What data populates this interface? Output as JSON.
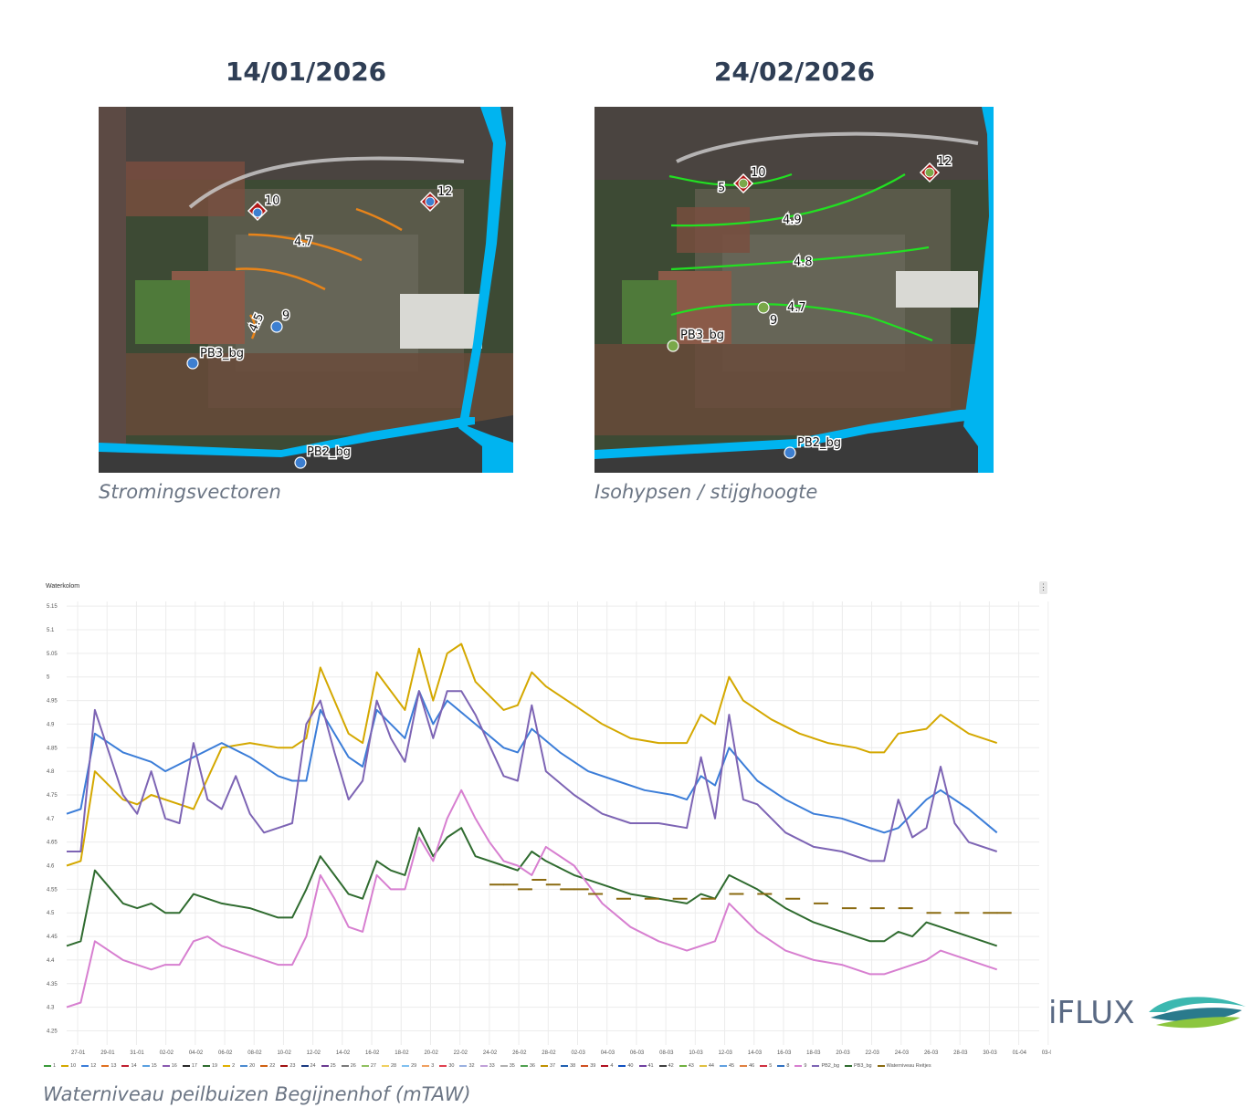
{
  "left_panel": {
    "date": "14/01/2026",
    "caption": "Stromingsvectoren",
    "labels": {
      "p10": "10",
      "p12": "12",
      "p9": "9",
      "pb3": "PB3_bg",
      "pb2": "PB2_bg",
      "c47": "4.7",
      "c45": "4.5"
    }
  },
  "right_panel": {
    "date": "24/02/2026",
    "caption": "Isohypsen / stijghoogte",
    "labels": {
      "p10": "10",
      "p12": "12",
      "p9": "9",
      "pb3": "PB3_bg",
      "pb2": "PB2_bg",
      "c5": "5",
      "c49": "4.9",
      "c48": "4.8",
      "c47": "4.7"
    }
  },
  "chart": {
    "title": "Waterkolom",
    "menu": "⋮",
    "caption": "Waterniveau peilbuizen Begijnenhof (mTAW)",
    "y_ticks": [
      "5.15",
      "5.1",
      "5.05",
      "5",
      "4.95",
      "4.9",
      "4.85",
      "4.8",
      "4.75",
      "4.7",
      "4.65",
      "4.6",
      "4.55",
      "4.5",
      "4.45",
      "4.4",
      "4.35",
      "4.3",
      "4.25"
    ],
    "x_ticks": [
      "27-01",
      "29-01",
      "31-01",
      "02-02",
      "04-02",
      "06-02",
      "08-02",
      "10-02",
      "12-02",
      "14-02",
      "16-02",
      "18-02",
      "20-02",
      "22-02",
      "24-02",
      "26-02",
      "28-02",
      "02-03",
      "04-03",
      "06-03",
      "08-03",
      "10-03",
      "12-03",
      "14-03",
      "16-03",
      "18-03",
      "20-03",
      "22-03",
      "24-03",
      "26-03",
      "28-03",
      "30-03",
      "01-04",
      "03-04"
    ],
    "legend": [
      {
        "name": "1",
        "color": "#3a9a3a"
      },
      {
        "name": "10",
        "color": "#d4a800"
      },
      {
        "name": "12",
        "color": "#3b7dd8"
      },
      {
        "name": "13",
        "color": "#e07020"
      },
      {
        "name": "14",
        "color": "#c02030"
      },
      {
        "name": "15",
        "color": "#5aa0e0"
      },
      {
        "name": "16",
        "color": "#8a5ab0"
      },
      {
        "name": "17",
        "color": "#2a2a2a"
      },
      {
        "name": "19",
        "color": "#2f6b2f"
      },
      {
        "name": "2",
        "color": "#e0b000"
      },
      {
        "name": "20",
        "color": "#4a8ad0"
      },
      {
        "name": "22",
        "color": "#d06010"
      },
      {
        "name": "23",
        "color": "#a01010"
      },
      {
        "name": "24",
        "color": "#1a3a80"
      },
      {
        "name": "25",
        "color": "#6a3a90"
      },
      {
        "name": "26",
        "color": "#7a7a7a"
      },
      {
        "name": "27",
        "color": "#90c060"
      },
      {
        "name": "28",
        "color": "#f0d060"
      },
      {
        "name": "29",
        "color": "#80c0f0"
      },
      {
        "name": "3",
        "color": "#f0a060"
      },
      {
        "name": "30",
        "color": "#e04050"
      },
      {
        "name": "32",
        "color": "#9ab0e0"
      },
      {
        "name": "33",
        "color": "#c0a0d8"
      },
      {
        "name": "35",
        "color": "#b0b0b0"
      },
      {
        "name": "36",
        "color": "#50a050"
      },
      {
        "name": "37",
        "color": "#c09000"
      },
      {
        "name": "38",
        "color": "#2060b0"
      },
      {
        "name": "39",
        "color": "#d05020"
      },
      {
        "name": "4",
        "color": "#b01020"
      },
      {
        "name": "40",
        "color": "#1050c0"
      },
      {
        "name": "41",
        "color": "#7040a0"
      },
      {
        "name": "42",
        "color": "#404040"
      },
      {
        "name": "43",
        "color": "#70b040"
      },
      {
        "name": "44",
        "color": "#e0c040"
      },
      {
        "name": "45",
        "color": "#60a0e0"
      },
      {
        "name": "46",
        "color": "#e08040"
      },
      {
        "name": "5",
        "color": "#d03040"
      },
      {
        "name": "8",
        "color": "#3070c0"
      },
      {
        "name": "9",
        "color": "#d77fd0"
      },
      {
        "name": "PB2_bg",
        "color": "#7d64b4"
      },
      {
        "name": "PB3_bg",
        "color": "#2f6b2f"
      },
      {
        "name": "Waterniveau Reitjes",
        "color": "#8a6a10"
      }
    ]
  },
  "chart_data": {
    "type": "line",
    "title": "Waterkolom",
    "x_unit": "date (dd-mm, 2026)",
    "ylim": [
      4.22,
      5.16
    ],
    "grid": true,
    "legend_position": "bottom",
    "series": [
      {
        "name": "10",
        "color": "#d4a800",
        "x": [
          "26-01",
          "27-01",
          "28-01",
          "30-01",
          "31-01",
          "01-02",
          "03-02",
          "04-02",
          "06-02",
          "08-02",
          "10-02",
          "11-02",
          "12-02",
          "13-02",
          "15-02",
          "16-02",
          "17-02",
          "19-02",
          "20-02",
          "21-02",
          "22-02",
          "23-02",
          "24-02",
          "26-02",
          "27-02",
          "28-02",
          "01-03",
          "03-03",
          "05-03",
          "07-03",
          "09-03",
          "11-03",
          "12-03",
          "13-03",
          "14-03",
          "15-03",
          "17-03",
          "19-03",
          "21-03",
          "23-03",
          "24-03",
          "25-03",
          "26-03",
          "28-03",
          "29-03",
          "31-03",
          "02-04"
        ],
        "y": [
          4.6,
          4.61,
          4.8,
          4.74,
          4.73,
          4.75,
          4.73,
          4.72,
          4.85,
          4.86,
          4.85,
          4.85,
          4.87,
          5.02,
          4.88,
          4.86,
          5.01,
          4.93,
          5.06,
          4.95,
          5.05,
          5.07,
          4.99,
          4.93,
          4.94,
          5.01,
          4.98,
          4.94,
          4.9,
          4.87,
          4.86,
          4.86,
          4.92,
          4.9,
          5.0,
          4.95,
          4.91,
          4.88,
          4.86,
          4.85,
          4.84,
          4.84,
          4.88,
          4.89,
          4.92,
          4.88,
          4.86
        ]
      },
      {
        "name": "12",
        "color": "#3b7dd8",
        "x": [
          "26-01",
          "27-01",
          "28-01",
          "30-01",
          "01-02",
          "02-02",
          "04-02",
          "06-02",
          "08-02",
          "10-02",
          "11-02",
          "12-02",
          "13-02",
          "15-02",
          "16-02",
          "17-02",
          "19-02",
          "20-02",
          "21-02",
          "22-02",
          "24-02",
          "26-02",
          "27-02",
          "28-02",
          "02-03",
          "04-03",
          "06-03",
          "08-03",
          "10-03",
          "11-03",
          "12-03",
          "13-03",
          "14-03",
          "16-03",
          "18-03",
          "20-03",
          "22-03",
          "24-03",
          "25-03",
          "26-03",
          "28-03",
          "29-03",
          "31-03",
          "02-04"
        ],
        "y": [
          4.71,
          4.72,
          4.88,
          4.84,
          4.82,
          4.8,
          4.83,
          4.86,
          4.83,
          4.79,
          4.78,
          4.78,
          4.93,
          4.83,
          4.81,
          4.93,
          4.87,
          4.97,
          4.9,
          4.95,
          4.9,
          4.85,
          4.84,
          4.89,
          4.84,
          4.8,
          4.78,
          4.76,
          4.75,
          4.74,
          4.79,
          4.77,
          4.85,
          4.78,
          4.74,
          4.71,
          4.7,
          4.68,
          4.67,
          4.68,
          4.74,
          4.76,
          4.72,
          4.67
        ]
      },
      {
        "name": "PB2_bg",
        "color": "#7d64b4",
        "x": [
          "26-01",
          "27-01",
          "28-01",
          "30-01",
          "31-01",
          "01-02",
          "02-02",
          "03-02",
          "04-02",
          "05-02",
          "06-02",
          "07-02",
          "08-02",
          "09-02",
          "10-02",
          "11-02",
          "12-02",
          "13-02",
          "14-02",
          "15-02",
          "16-02",
          "17-02",
          "18-02",
          "19-02",
          "20-02",
          "21-02",
          "22-02",
          "23-02",
          "24-02",
          "26-02",
          "27-02",
          "28-02",
          "01-03",
          "03-03",
          "05-03",
          "07-03",
          "09-03",
          "11-03",
          "12-03",
          "13-03",
          "14-03",
          "15-03",
          "16-03",
          "18-03",
          "20-03",
          "22-03",
          "24-03",
          "25-03",
          "26-03",
          "27-03",
          "28-03",
          "29-03",
          "30-03",
          "31-03",
          "02-04"
        ],
        "y": [
          4.63,
          4.63,
          4.93,
          4.75,
          4.71,
          4.8,
          4.7,
          4.69,
          4.86,
          4.74,
          4.72,
          4.79,
          4.71,
          4.67,
          4.68,
          4.69,
          4.9,
          4.95,
          4.84,
          4.74,
          4.78,
          4.95,
          4.87,
          4.82,
          4.97,
          4.87,
          4.97,
          4.97,
          4.92,
          4.79,
          4.78,
          4.94,
          4.8,
          4.75,
          4.71,
          4.69,
          4.69,
          4.68,
          4.83,
          4.7,
          4.92,
          4.74,
          4.73,
          4.67,
          4.64,
          4.63,
          4.61,
          4.61,
          4.74,
          4.66,
          4.68,
          4.81,
          4.69,
          4.65,
          4.63
        ]
      },
      {
        "name": "PB3_bg",
        "color": "#2f6b2f",
        "x": [
          "26-01",
          "27-01",
          "28-01",
          "30-01",
          "31-01",
          "01-02",
          "02-02",
          "03-02",
          "04-02",
          "06-02",
          "08-02",
          "10-02",
          "11-02",
          "12-02",
          "13-02",
          "14-02",
          "15-02",
          "16-02",
          "17-02",
          "18-02",
          "19-02",
          "20-02",
          "21-02",
          "22-02",
          "23-02",
          "24-02",
          "26-02",
          "27-02",
          "28-02",
          "01-03",
          "03-03",
          "05-03",
          "07-03",
          "09-03",
          "11-03",
          "12-03",
          "13-03",
          "14-03",
          "16-03",
          "18-03",
          "20-03",
          "22-03",
          "24-03",
          "25-03",
          "26-03",
          "27-03",
          "28-03",
          "29-03",
          "30-03",
          "31-03",
          "02-04"
        ],
        "y": [
          4.43,
          4.44,
          4.59,
          4.52,
          4.51,
          4.52,
          4.5,
          4.5,
          4.54,
          4.52,
          4.51,
          4.49,
          4.49,
          4.55,
          4.62,
          4.58,
          4.54,
          4.53,
          4.61,
          4.59,
          4.58,
          4.68,
          4.62,
          4.66,
          4.68,
          4.62,
          4.6,
          4.59,
          4.63,
          4.61,
          4.58,
          4.56,
          4.54,
          4.53,
          4.52,
          4.54,
          4.53,
          4.58,
          4.55,
          4.51,
          4.48,
          4.46,
          4.44,
          4.44,
          4.46,
          4.45,
          4.48,
          4.47,
          4.46,
          4.45,
          4.43
        ]
      },
      {
        "name": "9",
        "color": "#d77fd0",
        "x": [
          "26-01",
          "27-01",
          "28-01",
          "30-01",
          "01-02",
          "02-02",
          "03-02",
          "04-02",
          "05-02",
          "06-02",
          "08-02",
          "10-02",
          "11-02",
          "12-02",
          "13-02",
          "14-02",
          "15-02",
          "16-02",
          "17-02",
          "18-02",
          "19-02",
          "20-02",
          "21-02",
          "22-02",
          "23-02",
          "24-02",
          "25-02",
          "26-02",
          "27-02",
          "28-02",
          "01-03",
          "03-03",
          "05-03",
          "07-03",
          "09-03",
          "11-03",
          "12-03",
          "13-03",
          "14-03",
          "16-03",
          "18-03",
          "20-03",
          "22-03",
          "24-03",
          "25-03",
          "26-03",
          "28-03",
          "29-03",
          "30-03",
          "31-03",
          "02-04"
        ],
        "y": [
          4.3,
          4.31,
          4.44,
          4.4,
          4.38,
          4.39,
          4.39,
          4.44,
          4.45,
          4.43,
          4.41,
          4.39,
          4.39,
          4.45,
          4.58,
          4.53,
          4.47,
          4.46,
          4.58,
          4.55,
          4.55,
          4.66,
          4.61,
          4.7,
          4.76,
          4.7,
          4.65,
          4.61,
          4.6,
          4.58,
          4.64,
          4.6,
          4.52,
          4.47,
          4.44,
          4.42,
          4.43,
          4.44,
          4.52,
          4.46,
          4.42,
          4.4,
          4.39,
          4.37,
          4.37,
          4.38,
          4.4,
          4.42,
          4.41,
          4.4,
          4.38
        ]
      },
      {
        "name": "Waterniveau Reitjes",
        "color": "#8a6a10",
        "x": [
          "25-02",
          "26-02",
          "27-02",
          "28-02",
          "01-03",
          "02-03",
          "03-03",
          "04-03",
          "06-03",
          "08-03",
          "10-03",
          "12-03",
          "14-03",
          "16-03",
          "18-03",
          "20-03",
          "22-03",
          "24-03",
          "26-03",
          "28-03",
          "30-03",
          "01-04",
          "02-04"
        ],
        "y": [
          4.56,
          4.56,
          4.55,
          4.57,
          4.56,
          4.55,
          4.55,
          4.54,
          4.53,
          4.53,
          4.53,
          4.53,
          4.54,
          4.54,
          4.53,
          4.52,
          4.51,
          4.51,
          4.51,
          4.5,
          4.5,
          4.5,
          4.5
        ]
      }
    ]
  }
}
